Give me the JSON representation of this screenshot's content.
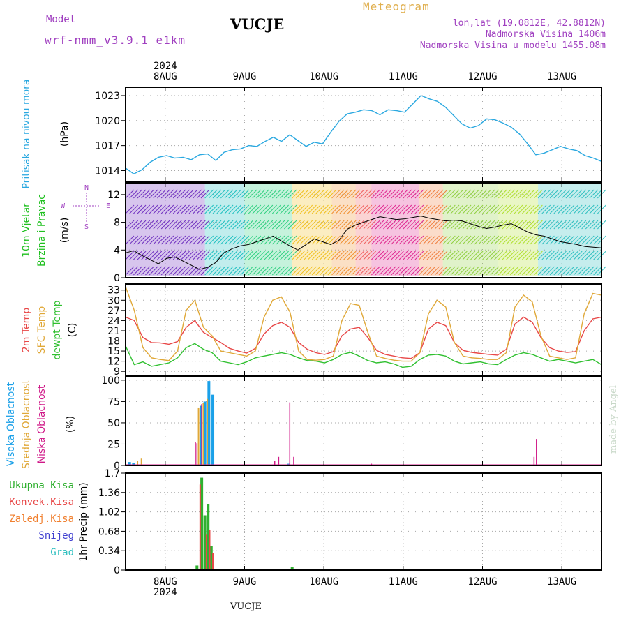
{
  "header": {
    "model_label": "Model",
    "model_name": "wrf-nmm_v3.9.1 e1km",
    "station": "VUCJE",
    "title": "Meteogram",
    "location": "lon,lat (19.0812E, 42.8812N)",
    "elevation": "Nadmorska Visina 1406m",
    "model_elevation": "Nadmorska Visina u modelu 1455.08m"
  },
  "watermark": "made by Angel",
  "footer_station": "VUCJE",
  "time_axis": {
    "year": "2024",
    "days": [
      "8AUG",
      "9AUG",
      "10AUG",
      "11AUG",
      "12AUG",
      "13AUG"
    ]
  },
  "wind_legend": {
    "n": "N",
    "s": "S",
    "w": "W",
    "e": "E"
  },
  "colors": {
    "pressure": "#2aa8e0",
    "temp2m": "#e84848",
    "sfc_temp": "#e0a838",
    "dewpt": "#30c030",
    "high_cloud": "#1aa0e8",
    "mid_cloud": "#e0a838",
    "low_cloud": "#d01888",
    "total_precip": "#30b030",
    "conv_precip": "#e84848",
    "frozen_precip": "#f08030",
    "snow": "#4040d0",
    "hail": "#30c0c0",
    "wind_label": "#20c020",
    "wind_legend": "#a040c0"
  },
  "chart_data": [
    {
      "type": "line",
      "panel": "pressure",
      "ylabel_main": "Pritisak na nivou mora",
      "ylabel_unit": "(hPa)",
      "ylim": [
        1012.7,
        1024
      ],
      "yticks": [
        1014,
        1017,
        1020,
        1023
      ],
      "x_start_day": 7.5,
      "x_end_day": 13.5,
      "grid": true,
      "series": [
        {
          "values": [
            1014.3,
            1013.6,
            1014.1,
            1015.0,
            1015.6,
            1015.8,
            1015.5,
            1015.6,
            1015.3,
            1015.9,
            1016.0,
            1015.2,
            1016.2,
            1016.5,
            1016.6,
            1017.0,
            1016.9,
            1017.5,
            1018.0,
            1017.5,
            1018.3,
            1017.6,
            1016.9,
            1017.4,
            1017.2,
            1018.6,
            1019.9,
            1020.8,
            1021.0,
            1021.3,
            1021.2,
            1020.7,
            1021.3,
            1021.2,
            1021.0,
            1022.0,
            1023.0,
            1022.6,
            1022.3,
            1021.6,
            1020.6,
            1019.6,
            1019.1,
            1019.4,
            1020.2,
            1020.1,
            1019.7,
            1019.2,
            1018.4,
            1017.2,
            1015.9,
            1016.1,
            1016.5,
            1016.9,
            1016.6,
            1016.4,
            1015.8,
            1015.5,
            1015.1
          ]
        }
      ]
    },
    {
      "type": "line",
      "panel": "wind",
      "ylabel_main": "10m Vjetar",
      "ylabel_sub": "Brzina i Pravac",
      "ylabel_unit": "(m/s)",
      "ylim": [
        0,
        13.7
      ],
      "yticks": [
        0,
        4,
        8,
        12
      ],
      "x_start_day": 7.5,
      "x_end_day": 13.5,
      "grid": true,
      "series": [
        {
          "values": [
            3.6,
            3.9,
            3.2,
            2.6,
            2.0,
            2.8,
            3.0,
            2.4,
            1.8,
            1.2,
            1.5,
            2.2,
            3.6,
            4.2,
            4.6,
            4.8,
            5.2,
            5.6,
            6.0,
            5.3,
            4.6,
            4.0,
            4.8,
            5.6,
            5.2,
            4.8,
            5.4,
            7.0,
            7.6,
            8.0,
            8.4,
            8.8,
            8.6,
            8.4,
            8.5,
            8.7,
            8.9,
            8.6,
            8.4,
            8.2,
            8.3,
            8.2,
            7.8,
            7.4,
            7.1,
            7.3,
            7.6,
            7.8,
            7.2,
            6.6,
            6.2,
            6.0,
            5.6,
            5.2,
            5.0,
            4.8,
            4.5,
            4.4,
            4.3
          ]
        }
      ]
    },
    {
      "type": "line",
      "panel": "temperature",
      "ylabel_main": "2m Temp",
      "ylabel_sub": "SFC Temp",
      "ylabel_sub2": "dewpt Temp",
      "ylabel_unit": "(C)",
      "ylim": [
        7.8,
        34.8
      ],
      "yticks": [
        9,
        12,
        15,
        18,
        21,
        24,
        27,
        30,
        33
      ],
      "x_start_day": 7.5,
      "x_end_day": 13.5,
      "grid": true,
      "series": [
        {
          "name": "2m Temp",
          "values": [
            25.0,
            24.0,
            19.0,
            17.5,
            17.4,
            17.0,
            17.8,
            22.0,
            24.0,
            20.5,
            19.0,
            17.5,
            15.8,
            15.0,
            14.4,
            15.8,
            20.0,
            22.5,
            23.5,
            22.0,
            17.5,
            15.5,
            14.5,
            14.0,
            14.8,
            19.5,
            21.5,
            22.0,
            19.0,
            15.2,
            14.0,
            13.5,
            13.0,
            12.8,
            14.5,
            21.5,
            23.5,
            22.5,
            17.5,
            15.2,
            14.6,
            14.3,
            14.0,
            13.8,
            15.5,
            23.0,
            25.0,
            23.5,
            19.0,
            16.0,
            15.0,
            14.6,
            14.8,
            21.0,
            24.5,
            25.0
          ]
        },
        {
          "name": "SFC Temp",
          "values": [
            34.0,
            27.0,
            16.0,
            13.0,
            12.5,
            12.2,
            15.0,
            27.0,
            30.0,
            22.0,
            19.5,
            15.0,
            14.5,
            14.0,
            13.5,
            15.0,
            25.0,
            30.0,
            31.0,
            26.5,
            15.0,
            12.5,
            12.3,
            12.5,
            13.5,
            24.0,
            29.0,
            28.5,
            20.5,
            13.5,
            12.8,
            12.3,
            12.0,
            12.0,
            14.5,
            26.0,
            30.0,
            28.0,
            17.5,
            13.5,
            13.0,
            12.8,
            12.5,
            12.5,
            14.5,
            28.0,
            31.5,
            29.5,
            19.5,
            13.5,
            13.0,
            12.5,
            13.0,
            26.0,
            32.0,
            31.5
          ]
        },
        {
          "name": "dewpt Temp",
          "values": [
            16.5,
            11.0,
            11.8,
            10.5,
            11.0,
            11.5,
            13.0,
            16.0,
            17.2,
            15.5,
            14.5,
            12.0,
            11.5,
            11.0,
            11.8,
            13.0,
            13.5,
            14.0,
            14.5,
            14.0,
            13.0,
            12.2,
            12.0,
            11.5,
            12.5,
            14.0,
            14.6,
            13.5,
            12.2,
            11.5,
            11.8,
            11.2,
            10.2,
            10.5,
            12.5,
            13.8,
            14.0,
            13.5,
            12.0,
            11.2,
            11.5,
            11.8,
            11.2,
            11.0,
            12.5,
            13.8,
            14.5,
            14.0,
            13.0,
            12.0,
            12.5,
            12.0,
            11.5,
            12.0,
            12.5,
            11.0
          ]
        }
      ]
    },
    {
      "type": "bar",
      "panel": "cloud",
      "ylabel_main": "Visoka Oblacnost",
      "ylabel_sub": "Srednja Oblacnost",
      "ylabel_sub2": "Niska Oblacnost",
      "ylabel_unit": "(%)",
      "ylim": [
        0,
        104
      ],
      "yticks": [
        0,
        25,
        50,
        75,
        100
      ],
      "x_start_day": 7.5,
      "x_end_day": 13.5,
      "grid": true,
      "series": [
        {
          "name": "Visoka Oblacnost",
          "x": [
            7.55,
            7.6,
            8.45,
            8.5,
            8.55,
            8.6,
            9.55
          ],
          "values": [
            4,
            3,
            70,
            75,
            99,
            83,
            2
          ]
        },
        {
          "name": "Srednja Oblacnost",
          "x": [
            7.65,
            7.7,
            8.42,
            8.48,
            8.53
          ],
          "values": [
            5,
            8,
            68,
            73,
            78
          ]
        },
        {
          "name": "Niska Oblacnost",
          "x": [
            8.38,
            8.4,
            8.46,
            9.38,
            9.43,
            9.57,
            9.62,
            10.6,
            12.65,
            12.68
          ],
          "values": [
            27,
            26,
            72,
            5,
            10,
            74,
            10,
            2,
            10,
            31
          ]
        }
      ]
    },
    {
      "type": "bar",
      "panel": "precipitation",
      "ylabel_main": "1hr Precip",
      "ylabel_unit": "(mm)",
      "ylim": [
        0,
        1.7
      ],
      "yticks": [
        0,
        0.34,
        0.68,
        1.02,
        1.36,
        1.7
      ],
      "x_start_day": 7.5,
      "x_end_day": 13.5,
      "grid": true,
      "legend": [
        "Ukupna Kisa",
        "Konvek.Kisa",
        "Zaledj.Kisa",
        "Snijeg",
        "Grad"
      ],
      "series": [
        {
          "name": "Ukupna Kisa",
          "x": [
            8.4,
            8.46,
            8.5,
            8.54,
            8.58,
            9.6
          ],
          "values": [
            0.08,
            1.62,
            0.96,
            1.16,
            0.42,
            0.05
          ]
        },
        {
          "name": "Konvek.Kisa",
          "x": [
            8.44,
            8.52,
            8.56,
            8.6
          ],
          "values": [
            1.5,
            0.62,
            0.7,
            0.3
          ]
        }
      ]
    }
  ]
}
